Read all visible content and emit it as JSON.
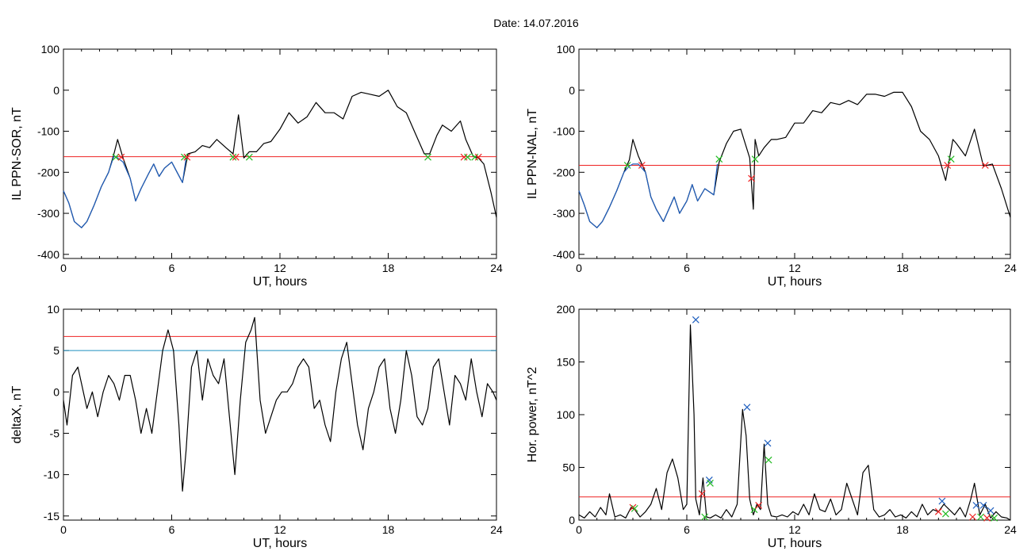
{
  "title": "Date:  14.07.2016",
  "chart_data": [
    {
      "id": "p1",
      "type": "line",
      "xlabel": "UT, hours",
      "ylabel": "IL PPN-SOR, nT",
      "xlim": [
        0,
        24
      ],
      "ylim": [
        -410,
        100
      ],
      "xticks": [
        0,
        6,
        12,
        18,
        24
      ],
      "yticks": [
        -400,
        -300,
        -200,
        -100,
        0,
        100
      ],
      "series": [
        {
          "color": "#000000",
          "x": [
            0,
            0.3,
            0.6,
            1.0,
            1.3,
            1.7,
            2.1,
            2.5,
            2.8,
            3.0,
            3.3,
            3.7,
            4.0,
            4.3,
            4.7,
            5.0,
            5.3,
            5.6,
            6.0,
            6.3,
            6.6,
            6.9,
            7.3,
            7.7,
            8.1,
            8.5,
            9.0,
            9.4,
            9.7,
            10.0,
            10.3,
            10.7,
            11.1,
            11.5,
            12.0,
            12.5,
            13.0,
            13.5,
            14.0,
            14.5,
            15.0,
            15.5,
            16.0,
            16.5,
            17.0,
            17.5,
            18.0,
            18.5,
            19.0,
            19.5,
            20.0,
            20.3,
            20.7,
            21.0,
            21.5,
            22.0,
            22.3,
            22.7,
            23.0,
            23.3,
            23.7,
            24.0
          ],
          "y": [
            -245,
            -275,
            -320,
            -335,
            -320,
            -280,
            -235,
            -200,
            -155,
            -120,
            -165,
            -215,
            -270,
            -240,
            -205,
            -180,
            -210,
            -190,
            -175,
            -200,
            -225,
            -155,
            -150,
            -135,
            -140,
            -120,
            -140,
            -155,
            -60,
            -165,
            -150,
            -150,
            -130,
            -125,
            -95,
            -55,
            -80,
            -65,
            -30,
            -55,
            -55,
            -70,
            -15,
            -5,
            -10,
            -15,
            0,
            -40,
            -55,
            -105,
            -155,
            -155,
            -110,
            -85,
            -100,
            -75,
            -120,
            -160,
            -165,
            -180,
            -250,
            -310
          ]
        },
        {
          "name": "",
          "color": "#1f5fbf",
          "x": [
            0,
            0.3,
            0.6,
            1.0,
            1.3,
            1.7,
            2.1,
            2.5,
            2.8,
            3.0,
            3.3,
            3.7,
            4.0,
            4.3,
            4.7,
            5.0,
            5.3,
            5.6,
            6.0,
            6.3,
            6.6,
            6.8
          ],
          "y": [
            -245,
            -275,
            -320,
            -335,
            -320,
            -280,
            -235,
            -200,
            -160,
            -165,
            -175,
            -215,
            -270,
            -240,
            -205,
            -180,
            -210,
            -190,
            -175,
            -200,
            -225,
            -165
          ]
        }
      ],
      "hlines": [
        {
          "y": -162,
          "color": "#ee2222"
        }
      ],
      "markers": [
        {
          "x": 2.9,
          "y": -163,
          "color": "#22bb22"
        },
        {
          "x": 3.2,
          "y": -163,
          "color": "#ee2222"
        },
        {
          "x": 6.7,
          "y": -163,
          "color": "#22bb22"
        },
        {
          "x": 6.85,
          "y": -163,
          "color": "#ee2222"
        },
        {
          "x": 9.4,
          "y": -163,
          "color": "#22bb22"
        },
        {
          "x": 9.55,
          "y": -163,
          "color": "#ee2222"
        },
        {
          "x": 10.3,
          "y": -163,
          "color": "#22bb22"
        },
        {
          "x": 20.2,
          "y": -163,
          "color": "#22bb22"
        },
        {
          "x": 22.2,
          "y": -163,
          "color": "#ee2222"
        },
        {
          "x": 22.4,
          "y": -163,
          "color": "#22bb22"
        },
        {
          "x": 22.8,
          "y": -163,
          "color": "#22bb22"
        },
        {
          "x": 23.0,
          "y": -163,
          "color": "#ee2222"
        }
      ]
    },
    {
      "id": "p2",
      "type": "line",
      "xlabel": "UT, hours",
      "ylabel": "IL PPN-NAL, nT",
      "xlim": [
        0,
        24
      ],
      "ylim": [
        -410,
        100
      ],
      "xticks": [
        0,
        6,
        12,
        18,
        24
      ],
      "yticks": [
        -400,
        -300,
        -200,
        -100,
        0,
        100
      ],
      "series": [
        {
          "color": "#000000",
          "x": [
            0,
            0.3,
            0.6,
            1.0,
            1.3,
            1.7,
            2.1,
            2.5,
            2.8,
            3.0,
            3.3,
            3.7,
            4.0,
            4.3,
            4.7,
            5.0,
            5.3,
            5.6,
            6.0,
            6.3,
            6.6,
            7.0,
            7.5,
            7.8,
            8.2,
            8.6,
            9.0,
            9.5,
            9.7,
            9.8,
            10.0,
            10.3,
            10.7,
            11.0,
            11.5,
            12.0,
            12.5,
            13.0,
            13.5,
            14.0,
            14.5,
            15.0,
            15.5,
            16.0,
            16.5,
            17.0,
            17.5,
            18.0,
            18.5,
            19.0,
            19.5,
            20.0,
            20.4,
            20.6,
            20.8,
            21.0,
            21.5,
            22.0,
            22.5,
            23.0,
            23.5,
            24.0
          ],
          "y": [
            -245,
            -280,
            -320,
            -335,
            -320,
            -285,
            -245,
            -200,
            -170,
            -120,
            -160,
            -200,
            -260,
            -290,
            -320,
            -290,
            -260,
            -300,
            -270,
            -230,
            -270,
            -240,
            -255,
            -175,
            -130,
            -100,
            -95,
            -165,
            -290,
            -120,
            -160,
            -140,
            -120,
            -120,
            -115,
            -80,
            -80,
            -50,
            -55,
            -30,
            -35,
            -25,
            -35,
            -10,
            -10,
            -15,
            -5,
            -5,
            -40,
            -100,
            -120,
            -160,
            -220,
            -170,
            -120,
            -130,
            -160,
            -95,
            -185,
            -180,
            -240,
            -310
          ]
        },
        {
          "color": "#1f5fbf",
          "x": [
            0,
            0.3,
            0.6,
            1.0,
            1.3,
            1.7,
            2.1,
            2.5,
            2.8,
            3.0,
            3.3,
            3.7,
            4.0,
            4.3,
            4.7,
            5.0,
            5.3,
            5.6,
            6.0,
            6.3,
            6.6,
            7.0,
            7.5,
            7.7
          ],
          "y": [
            -245,
            -280,
            -320,
            -335,
            -320,
            -285,
            -245,
            -200,
            -185,
            -180,
            -180,
            -200,
            -260,
            -290,
            -320,
            -290,
            -260,
            -300,
            -270,
            -230,
            -270,
            -240,
            -255,
            -180
          ]
        }
      ],
      "hlines": [
        {
          "y": -183,
          "color": "#ee2222"
        }
      ],
      "markers": [
        {
          "x": 2.7,
          "y": -183,
          "color": "#22bb22"
        },
        {
          "x": 3.5,
          "y": -183,
          "color": "#ee2222"
        },
        {
          "x": 7.8,
          "y": -168,
          "color": "#22bb22"
        },
        {
          "x": 9.6,
          "y": -215,
          "color": "#ee2222"
        },
        {
          "x": 9.8,
          "y": -168,
          "color": "#22bb22"
        },
        {
          "x": 20.5,
          "y": -183,
          "color": "#ee2222"
        },
        {
          "x": 20.7,
          "y": -168,
          "color": "#22bb22"
        },
        {
          "x": 22.6,
          "y": -183,
          "color": "#ee2222"
        }
      ]
    },
    {
      "id": "p3",
      "type": "line",
      "xlabel": "UT, hours",
      "ylabel": "deltaX, nT",
      "xlim": [
        0,
        24
      ],
      "ylim": [
        -15.5,
        10
      ],
      "xticks": [
        0,
        6,
        12,
        18,
        24
      ],
      "yticks": [
        -15,
        -10,
        -5,
        0,
        5,
        10
      ],
      "series": [
        {
          "color": "#000000",
          "x": [
            0,
            0.2,
            0.5,
            0.8,
            1.0,
            1.3,
            1.6,
            1.9,
            2.2,
            2.5,
            2.8,
            3.1,
            3.4,
            3.7,
            4.0,
            4.3,
            4.6,
            4.9,
            5.2,
            5.5,
            5.8,
            6.1,
            6.4,
            6.6,
            6.8,
            7.1,
            7.4,
            7.7,
            8.0,
            8.3,
            8.6,
            8.9,
            9.2,
            9.5,
            9.8,
            10.1,
            10.4,
            10.6,
            10.9,
            11.2,
            11.5,
            11.8,
            12.1,
            12.4,
            12.7,
            13.0,
            13.3,
            13.6,
            13.9,
            14.2,
            14.5,
            14.8,
            15.1,
            15.4,
            15.7,
            16.0,
            16.3,
            16.6,
            16.9,
            17.2,
            17.5,
            17.8,
            18.1,
            18.4,
            18.7,
            19.0,
            19.3,
            19.6,
            19.9,
            20.2,
            20.5,
            20.8,
            21.1,
            21.4,
            21.7,
            22.0,
            22.3,
            22.6,
            22.9,
            23.2,
            23.5,
            23.8,
            24.0
          ],
          "y": [
            -1,
            -4,
            2,
            3,
            1,
            -2,
            0,
            -3,
            0,
            2,
            1,
            -1,
            2,
            2,
            -1,
            -5,
            -2,
            -5,
            0,
            5,
            7.5,
            5,
            -4,
            -12,
            -7,
            3,
            5,
            -1,
            4,
            2,
            1,
            4,
            -3,
            -10,
            -1,
            6,
            7.5,
            9,
            -1,
            -5,
            -3,
            -1,
            0,
            0,
            1,
            3,
            4,
            3,
            -2,
            -1,
            -4,
            -6,
            0,
            4,
            6,
            1,
            -4,
            -7,
            -2,
            0,
            3,
            4,
            -2,
            -5,
            -1,
            5,
            2,
            -3,
            -4,
            -2,
            3,
            4,
            0,
            -4,
            2,
            1,
            -1,
            4,
            0,
            -3,
            1,
            0,
            -1
          ]
        }
      ],
      "hlines": [
        {
          "y": 6.7,
          "color": "#ee2222"
        },
        {
          "y": 5.0,
          "color": "#1f8fbf"
        }
      ],
      "markers": []
    },
    {
      "id": "p4",
      "type": "line",
      "xlabel": "UT, hours",
      "ylabel": "Hor. power, nT^2",
      "xlim": [
        0,
        24
      ],
      "ylim": [
        0,
        200
      ],
      "xticks": [
        0,
        6,
        12,
        18,
        24
      ],
      "yticks": [
        0,
        50,
        100,
        150,
        200
      ],
      "series": [
        {
          "color": "#000000",
          "x": [
            0,
            0.3,
            0.6,
            0.9,
            1.2,
            1.5,
            1.7,
            2.0,
            2.3,
            2.6,
            2.9,
            3.1,
            3.4,
            3.7,
            4.0,
            4.3,
            4.6,
            4.9,
            5.2,
            5.5,
            5.8,
            6.0,
            6.2,
            6.4,
            6.5,
            6.7,
            6.9,
            7.1,
            7.3,
            7.6,
            7.9,
            8.2,
            8.5,
            8.8,
            9.1,
            9.3,
            9.5,
            9.7,
            9.9,
            10.1,
            10.3,
            10.5,
            10.7,
            11.0,
            11.3,
            11.6,
            11.9,
            12.2,
            12.5,
            12.8,
            13.1,
            13.4,
            13.7,
            14.0,
            14.3,
            14.6,
            14.9,
            15.2,
            15.5,
            15.8,
            16.1,
            16.4,
            16.7,
            17.0,
            17.3,
            17.6,
            17.9,
            18.2,
            18.5,
            18.8,
            19.1,
            19.4,
            19.7,
            20.0,
            20.3,
            20.6,
            20.9,
            21.2,
            21.5,
            21.8,
            22.0,
            22.3,
            22.6,
            22.9,
            23.2,
            23.5,
            23.8,
            24.0
          ],
          "y": [
            5,
            2,
            8,
            3,
            12,
            5,
            25,
            3,
            5,
            2,
            12,
            10,
            3,
            8,
            15,
            30,
            10,
            45,
            58,
            40,
            10,
            15,
            185,
            100,
            20,
            5,
            40,
            3,
            2,
            5,
            2,
            10,
            3,
            15,
            105,
            80,
            20,
            5,
            15,
            10,
            72,
            15,
            4,
            3,
            5,
            3,
            8,
            5,
            15,
            5,
            25,
            10,
            8,
            20,
            5,
            10,
            35,
            20,
            5,
            45,
            52,
            10,
            3,
            5,
            10,
            3,
            5,
            2,
            8,
            3,
            15,
            5,
            10,
            8,
            15,
            10,
            5,
            12,
            3,
            20,
            35,
            5,
            15,
            2,
            8,
            3,
            2,
            0
          ]
        }
      ],
      "hlines": [
        {
          "y": 22,
          "color": "#ee2222"
        }
      ],
      "markers": [
        {
          "x": 3.0,
          "y": 12,
          "color": "#ee2222"
        },
        {
          "x": 3.1,
          "y": 11,
          "color": "#22bb22"
        },
        {
          "x": 6.5,
          "y": 190,
          "color": "#1f5fbf"
        },
        {
          "x": 6.85,
          "y": 25,
          "color": "#ee2222"
        },
        {
          "x": 7.0,
          "y": 3,
          "color": "#22bb22"
        },
        {
          "x": 7.25,
          "y": 38,
          "color": "#1f5fbf"
        },
        {
          "x": 7.3,
          "y": 35,
          "color": "#22bb22"
        },
        {
          "x": 9.35,
          "y": 107,
          "color": "#1f5fbf"
        },
        {
          "x": 9.75,
          "y": 10,
          "color": "#22bb22"
        },
        {
          "x": 10.0,
          "y": 14,
          "color": "#ee2222"
        },
        {
          "x": 10.5,
          "y": 73,
          "color": "#1f5fbf"
        },
        {
          "x": 10.55,
          "y": 57,
          "color": "#22bb22"
        },
        {
          "x": 20.0,
          "y": 8,
          "color": "#ee2222"
        },
        {
          "x": 20.2,
          "y": 18,
          "color": "#1f5fbf"
        },
        {
          "x": 20.4,
          "y": 6,
          "color": "#22bb22"
        },
        {
          "x": 21.9,
          "y": 3,
          "color": "#ee2222"
        },
        {
          "x": 22.1,
          "y": 14,
          "color": "#1f5fbf"
        },
        {
          "x": 22.35,
          "y": 3,
          "color": "#22bb22"
        },
        {
          "x": 22.5,
          "y": 14,
          "color": "#1f5fbf"
        },
        {
          "x": 22.7,
          "y": 2,
          "color": "#ee2222"
        },
        {
          "x": 22.9,
          "y": 9,
          "color": "#1f5fbf"
        },
        {
          "x": 23.1,
          "y": 2,
          "color": "#22bb22"
        }
      ]
    }
  ]
}
